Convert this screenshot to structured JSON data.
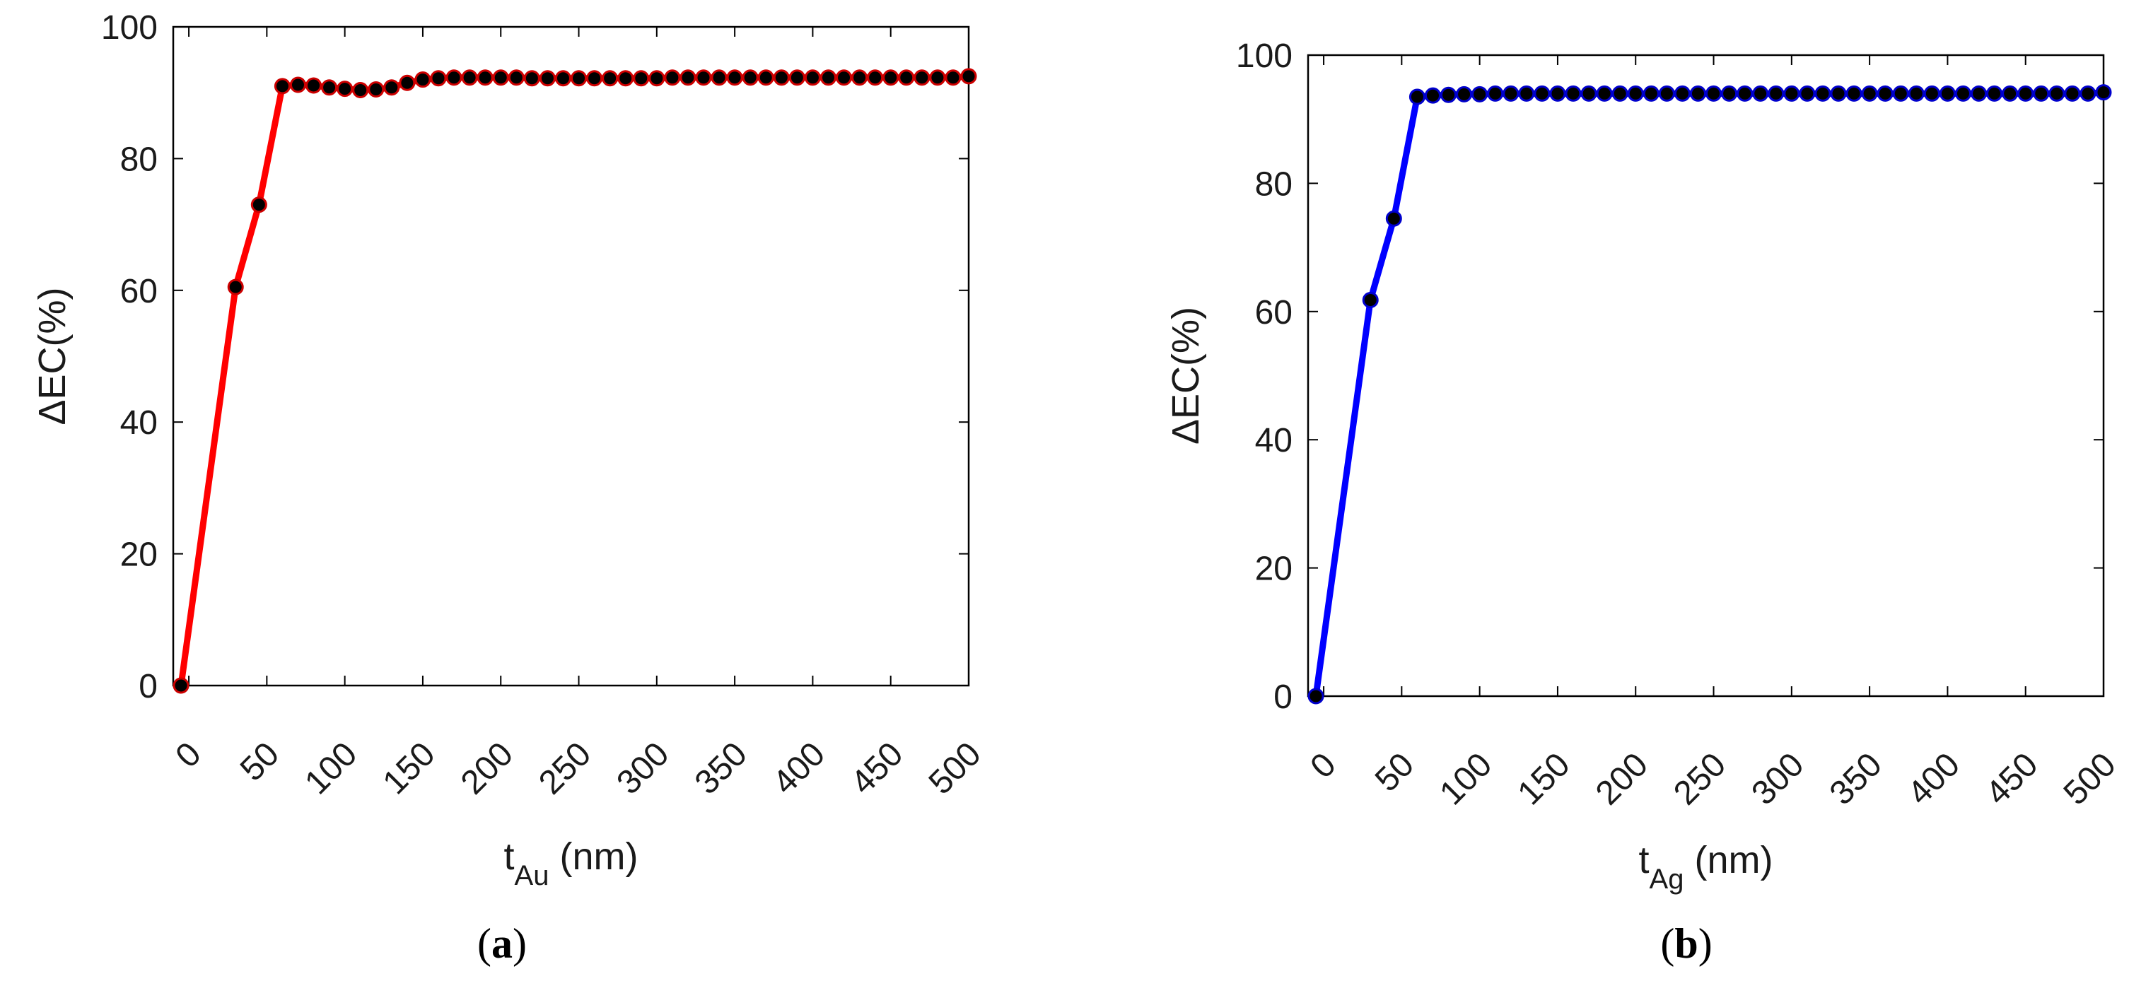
{
  "chart_data": [
    {
      "type": "line",
      "panel_label": "a",
      "xlabel": {
        "main": "t",
        "sub": "Au",
        "unit": " (nm)"
      },
      "ylabel": "ΔEC(%)",
      "xlim": [
        -10,
        500
      ],
      "ylim": [
        0,
        100
      ],
      "xticks": [
        "0",
        "50",
        "100",
        "150",
        "200",
        "250",
        "300",
        "350",
        "400",
        "450",
        "500"
      ],
      "yticks": [
        "0",
        "20",
        "40",
        "60",
        "80",
        "100"
      ],
      "line_color": "#ff0000",
      "marker_color": "#000000",
      "marker_edge_color": "#cc0000",
      "series": [
        {
          "x": [
            -5,
            30,
            45,
            60,
            70,
            80,
            90,
            100,
            110,
            120,
            130,
            140,
            150,
            160,
            170,
            180,
            190,
            200,
            210,
            220,
            230,
            240,
            250,
            260,
            270,
            280,
            290,
            300,
            310,
            320,
            330,
            340,
            350,
            360,
            370,
            380,
            390,
            400,
            410,
            420,
            430,
            440,
            450,
            460,
            470,
            480,
            490,
            500
          ],
          "y": [
            0,
            60.5,
            73,
            91,
            91.2,
            91.1,
            90.8,
            90.6,
            90.4,
            90.5,
            90.8,
            91.5,
            92,
            92.2,
            92.3,
            92.3,
            92.3,
            92.3,
            92.3,
            92.2,
            92.2,
            92.2,
            92.2,
            92.2,
            92.2,
            92.2,
            92.2,
            92.2,
            92.3,
            92.3,
            92.3,
            92.3,
            92.3,
            92.3,
            92.3,
            92.3,
            92.3,
            92.3,
            92.3,
            92.3,
            92.3,
            92.3,
            92.3,
            92.3,
            92.3,
            92.3,
            92.3,
            92.5
          ]
        }
      ]
    },
    {
      "type": "line",
      "panel_label": "b",
      "xlabel": {
        "main": "t",
        "sub": "Ag",
        "unit": " (nm)"
      },
      "ylabel": "ΔEC(%)",
      "xlim": [
        -10,
        500
      ],
      "ylim": [
        0,
        100
      ],
      "xticks": [
        "0",
        "50",
        "100",
        "150",
        "200",
        "250",
        "300",
        "350",
        "400",
        "450",
        "500"
      ],
      "yticks": [
        "0",
        "20",
        "40",
        "60",
        "80",
        "100"
      ],
      "line_color": "#0000ff",
      "marker_color": "#000000",
      "marker_edge_color": "#0000cc",
      "series": [
        {
          "x": [
            -5,
            30,
            45,
            60,
            70,
            80,
            90,
            100,
            110,
            120,
            130,
            140,
            150,
            160,
            170,
            180,
            190,
            200,
            210,
            220,
            230,
            240,
            250,
            260,
            270,
            280,
            290,
            300,
            310,
            320,
            330,
            340,
            350,
            360,
            370,
            380,
            390,
            400,
            410,
            420,
            430,
            440,
            450,
            460,
            470,
            480,
            490,
            500
          ],
          "y": [
            0,
            61.8,
            74.5,
            93.5,
            93.7,
            93.8,
            93.9,
            93.9,
            94,
            94,
            94,
            94,
            94,
            94,
            94,
            94,
            94,
            94,
            94,
            94,
            94,
            94,
            94,
            94,
            94,
            94,
            94,
            94,
            94,
            94,
            94,
            94,
            94,
            94,
            94,
            94,
            94,
            94,
            94,
            94,
            94,
            94,
            94,
            94,
            94,
            94,
            94,
            94.2
          ]
        }
      ]
    }
  ]
}
